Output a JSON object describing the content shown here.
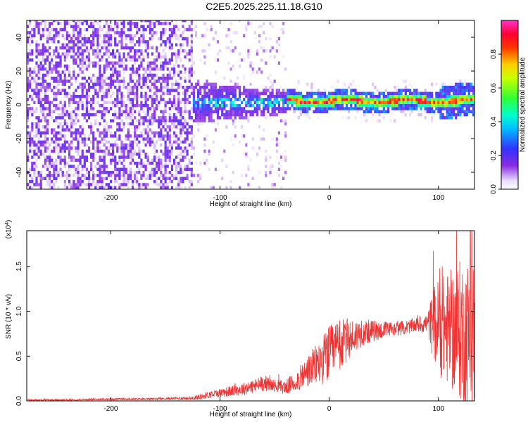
{
  "figure": {
    "title": "C2E5.2025.225.11.18.G10"
  },
  "chart_data": [
    {
      "type": "heatmap",
      "title": "C2E5.2025.225.11.18.G10",
      "xlabel": "Height of straight line (km)",
      "ylabel": "Frequency (Hz)",
      "xlim": [
        -277,
        133
      ],
      "ylim": [
        -50,
        50
      ],
      "x_ticks": [
        -200,
        -100,
        0,
        100
      ],
      "x_tick_labels": [
        "-200",
        "-100",
        "0",
        "100"
      ],
      "y_ticks": [
        -40,
        -20,
        0,
        20,
        40
      ],
      "y_tick_labels": [
        "-40",
        "-20",
        "0",
        "20",
        "40"
      ],
      "colorbar": {
        "label": "Normalized spectral amplitude",
        "range": [
          0,
          1
        ],
        "ticks": [
          0.0,
          0.2,
          0.4,
          0.6,
          0.8
        ],
        "tick_labels": [
          "0.0",
          "0.2",
          "0.4",
          "0.6",
          "0.8"
        ],
        "colormap": "rainbow (white-purple-blue-cyan-green-yellow-red-magenta)"
      },
      "regions": [
        {
          "x_range": [
            -277,
            -125
          ],
          "description": "broadband noise across all frequencies",
          "freq_span": [
            -50,
            50
          ],
          "amplitude": 0.1
        },
        {
          "x_range": [
            -125,
            -40
          ],
          "description": "energy concentrating near 0 Hz",
          "freq_span": [
            -12,
            12
          ],
          "amplitude": 0.2
        },
        {
          "x_range": [
            -40,
            133
          ],
          "description": "narrow band signal near 0 to 3 Hz",
          "freq_span": [
            -3,
            5
          ],
          "amplitude": 0.85
        }
      ]
    },
    {
      "type": "line",
      "xlabel": "Height of straight line (km)",
      "ylabel": "SNR (10 * v/v)",
      "y_scale_label": "(x10^4)",
      "xlim": [
        -277,
        133
      ],
      "ylim": [
        0,
        1.9
      ],
      "x_ticks": [
        -200,
        -100,
        0,
        100
      ],
      "x_tick_labels": [
        "-200",
        "-100",
        "0",
        "100"
      ],
      "y_ticks": [
        0.0,
        0.5,
        1.0,
        1.5
      ],
      "y_tick_labels": [
        "0.0",
        "0.5",
        "1.0",
        "1.5"
      ],
      "series": [
        {
          "color": "#ee3333",
          "x": [
            -277,
            -250,
            -225,
            -200,
            -175,
            -150,
            -130,
            -120,
            -110,
            -100,
            -90,
            -80,
            -70,
            -60,
            -50,
            -40,
            -30,
            -20,
            -10,
            0,
            10,
            20,
            30,
            40,
            50,
            60,
            70,
            80,
            90,
            95,
            100,
            110,
            120,
            130
          ],
          "y": [
            0.01,
            0.01,
            0.015,
            0.02,
            0.02,
            0.025,
            0.03,
            0.04,
            0.07,
            0.09,
            0.11,
            0.13,
            0.16,
            0.2,
            0.17,
            0.15,
            0.22,
            0.32,
            0.42,
            0.52,
            0.62,
            0.7,
            0.76,
            0.78,
            0.79,
            0.8,
            0.82,
            0.85,
            0.86,
            0.87,
            0.83,
            0.8,
            0.78,
            0.75
          ],
          "noise_amplitude": [
            0.008,
            0.008,
            0.008,
            0.01,
            0.01,
            0.012,
            0.02,
            0.03,
            0.04,
            0.05,
            0.06,
            0.07,
            0.08,
            0.09,
            0.07,
            0.08,
            0.12,
            0.18,
            0.25,
            0.32,
            0.3,
            0.22,
            0.15,
            0.12,
            0.1,
            0.08,
            0.08,
            0.08,
            0.12,
            0.4,
            0.55,
            0.65,
            0.8,
            0.85
          ]
        }
      ]
    }
  ]
}
